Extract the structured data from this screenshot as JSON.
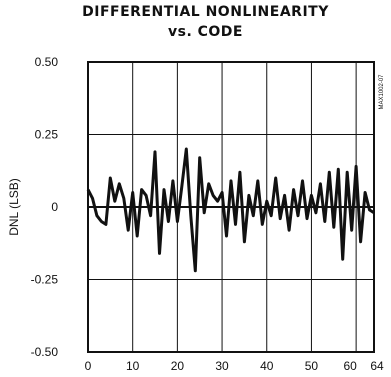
{
  "chart_data": {
    "type": "line",
    "title": "DIFFERENTIAL NONLINEARITY",
    "subtitle": "vs. CODE",
    "xlabel": "",
    "ylabel": "DNL (LSB)",
    "side_note": "MAX1002-07",
    "xlim": [
      0,
      64
    ],
    "ylim": [
      -0.5,
      0.5
    ],
    "x_ticks": [
      0,
      10,
      20,
      30,
      40,
      50,
      60,
      64
    ],
    "x_tick_labels": [
      "0",
      "10",
      "20",
      "30",
      "40",
      "50",
      "60",
      "64"
    ],
    "y_ticks": [
      0.5,
      0.25,
      0,
      -0.25,
      -0.5
    ],
    "y_tick_labels": [
      "0.50",
      "0.25",
      "0",
      "-0.25",
      "-0.50"
    ],
    "grid": true,
    "series": [
      {
        "x": [
          0,
          1,
          2,
          3,
          4,
          5,
          6,
          7,
          8,
          9,
          10,
          11,
          12,
          13,
          14,
          15,
          16,
          17,
          18,
          19,
          20,
          21,
          22,
          23,
          24,
          25,
          26,
          27,
          28,
          29,
          30,
          31,
          32,
          33,
          34,
          35,
          36,
          37,
          38,
          39,
          40,
          41,
          42,
          43,
          44,
          45,
          46,
          47,
          48,
          49,
          50,
          51,
          52,
          53,
          54,
          55,
          56,
          57,
          58,
          59,
          60,
          61,
          62,
          63,
          64
        ],
        "y": [
          0.06,
          0.03,
          -0.03,
          -0.05,
          -0.06,
          0.1,
          0.02,
          0.08,
          0.03,
          -0.08,
          0.05,
          -0.1,
          0.06,
          0.04,
          -0.03,
          0.19,
          -0.16,
          0.06,
          -0.05,
          0.09,
          -0.05,
          0.07,
          0.2,
          -0.03,
          -0.22,
          0.17,
          -0.02,
          0.08,
          0.04,
          0.02,
          0.05,
          -0.1,
          0.09,
          -0.06,
          0.12,
          -0.12,
          0.04,
          -0.03,
          0.09,
          -0.06,
          0.02,
          -0.03,
          0.1,
          -0.04,
          0.04,
          -0.08,
          0.06,
          -0.03,
          0.09,
          -0.04,
          0.04,
          -0.02,
          0.08,
          -0.05,
          0.12,
          -0.07,
          0.13,
          -0.18,
          0.12,
          -0.08,
          0.14,
          -0.12,
          0.05,
          -0.01,
          -0.02
        ]
      }
    ]
  }
}
